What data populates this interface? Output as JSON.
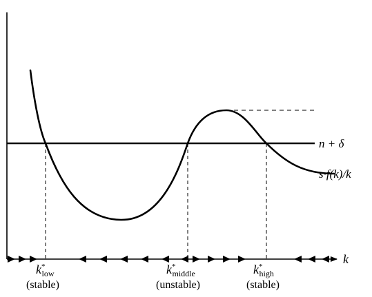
{
  "axis": {
    "x_label": "k"
  },
  "curves": {
    "line_label": "n + δ",
    "curve_label": "s·f(k)/k"
  },
  "points": [
    {
      "id": "low",
      "sym": "k",
      "star": "*",
      "sub": "low",
      "note": "(stable)"
    },
    {
      "id": "middle",
      "sym": "k",
      "star": "*",
      "sub": "middle",
      "note": "(unstable)"
    },
    {
      "id": "high",
      "sym": "k",
      "star": "*",
      "sub": "high",
      "note": "(stable)"
    }
  ],
  "arrows": {
    "direction_segments": [
      "right",
      "left",
      "right",
      "left"
    ]
  }
}
